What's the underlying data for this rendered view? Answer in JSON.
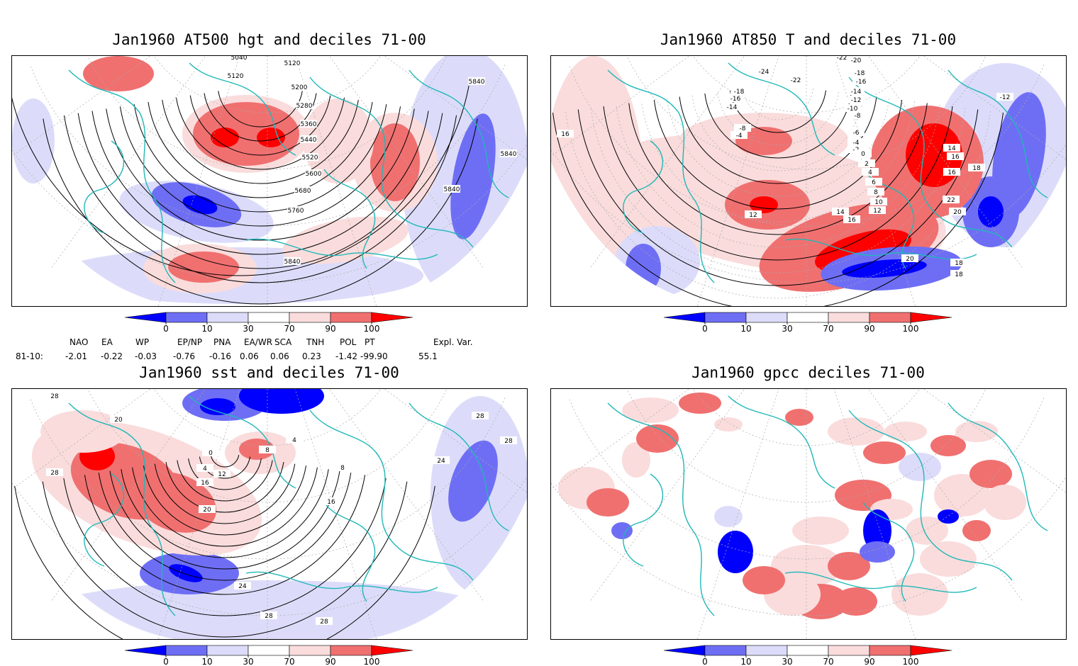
{
  "panels": [
    {
      "title": "Jan1960 AT500 hgt and deciles 71-00",
      "contour_labels": [
        "5040",
        "5120",
        "5120",
        "5200",
        "5280",
        "5360",
        "5440",
        "5520",
        "5600",
        "5680",
        "5760",
        "5840",
        "5840",
        "5840",
        "5840"
      ]
    },
    {
      "title": "Jan1960 AT850 T and deciles 71-00",
      "contour_labels": [
        "-20",
        "-22",
        "-18",
        "-16",
        "-24",
        "-18",
        "-16",
        "-14",
        "-22",
        "-12",
        "-14",
        "-10",
        "-8",
        "-8",
        "-6",
        "-4",
        "-4",
        "-2",
        "0",
        "2",
        "4",
        "6",
        "8",
        "10",
        "12",
        "12",
        "14",
        "14",
        "16",
        "16",
        "16",
        "16",
        "18",
        "18",
        "18",
        "20",
        "20",
        "22",
        "-12"
      ]
    },
    {
      "title": "Jan1960 sst and deciles 71-00",
      "contour_labels": [
        "28",
        "20",
        "28",
        "0",
        "4",
        "8",
        "12",
        "16",
        "20",
        "24",
        "28",
        "28",
        "28",
        "24",
        "28",
        "16",
        "8",
        "4"
      ]
    },
    {
      "title": "Jan1960 gpcc deciles 71-00",
      "contour_labels": []
    }
  ],
  "colorbar": {
    "labels": [
      "0",
      "10",
      "30",
      "70",
      "90",
      "100"
    ],
    "colors": [
      "#0000ff",
      "#6e6ef5",
      "#dcdcfa",
      "#ffffff",
      "#fadcdc",
      "#f07070",
      "#ff0000"
    ]
  },
  "indices": {
    "names": [
      "NAO",
      "EA",
      "WP",
      "EP/NP",
      "PNA",
      "EA/WR",
      "SCA",
      "TNH",
      "POL",
      "PT",
      "Expl. Var."
    ],
    "row_label": "81-10:",
    "values": [
      "-2.01",
      "-0.22",
      "-0.03",
      "-0.76",
      "-0.16",
      "0.06",
      "0.06",
      "0.23",
      "-1.42",
      "-99.90",
      "55.1"
    ]
  }
}
